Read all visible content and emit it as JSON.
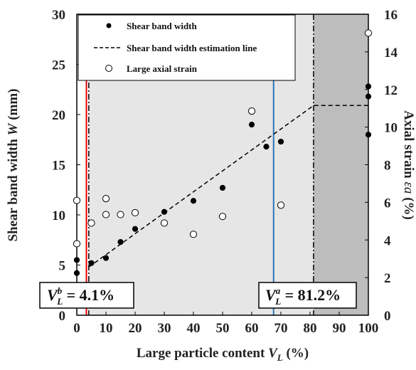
{
  "chart_data": {
    "type": "scatter",
    "xlabel": "Large particle content",
    "xlabel_var": "V",
    "xlabel_sub": "L",
    "xlabel_unit": "(%)",
    "ylabel": "Shear band width",
    "ylabel_var": "W",
    "ylabel_unit": "(mm)",
    "y2label": "Axial strain",
    "y2label_var": "εa",
    "y2label_unit": "(%)",
    "xlim": [
      0,
      100
    ],
    "ylim": [
      0,
      30
    ],
    "y2lim": [
      0,
      16
    ],
    "x_ticks": [
      "0",
      "10",
      "20",
      "30",
      "40",
      "50",
      "60",
      "70",
      "80",
      "90",
      "100"
    ],
    "y_ticks": [
      "0",
      "5",
      "10",
      "15",
      "20",
      "25",
      "30"
    ],
    "y2_ticks": [
      "0",
      "2",
      "4",
      "6",
      "8",
      "10",
      "12",
      "14",
      "16"
    ],
    "legend": {
      "position": "top-left",
      "entries": [
        "Shear band width",
        "Shear band width estimation line",
        "Large axial strain"
      ]
    },
    "series": [
      {
        "name": "Shear band width",
        "axis": "left",
        "marker": "filled",
        "points": [
          [
            0,
            4.2
          ],
          [
            0,
            5.5
          ],
          [
            5,
            5.2
          ],
          [
            10,
            5.7
          ],
          [
            15,
            7.3
          ],
          [
            20,
            8.6
          ],
          [
            30,
            10.3
          ],
          [
            40,
            11.4
          ],
          [
            50,
            12.7
          ],
          [
            60,
            19.0
          ],
          [
            65,
            16.8
          ],
          [
            70,
            17.3
          ],
          [
            100,
            22.8
          ],
          [
            100,
            21.8
          ],
          [
            100,
            18.0
          ]
        ]
      },
      {
        "name": "Shear band width estimation line",
        "axis": "left",
        "style": "dashed",
        "points": [
          [
            4.1,
            4.8
          ],
          [
            81.2,
            20.9
          ],
          [
            100,
            20.9
          ]
        ]
      },
      {
        "name": "Large axial strain",
        "axis": "right",
        "marker": "open",
        "points": [
          [
            0,
            6.1
          ],
          [
            0,
            3.8
          ],
          [
            5,
            4.9
          ],
          [
            10,
            6.2
          ],
          [
            10,
            5.35
          ],
          [
            15,
            5.35
          ],
          [
            20,
            5.45
          ],
          [
            30,
            4.9
          ],
          [
            40,
            4.3
          ],
          [
            50,
            5.25
          ],
          [
            60,
            10.85
          ],
          [
            70,
            5.85
          ],
          [
            100,
            15.0
          ]
        ]
      }
    ],
    "regions": [
      {
        "name": "middle",
        "from": 4.1,
        "to": 81.2,
        "color": "#e6e6e6"
      },
      {
        "name": "right",
        "from": 81.2,
        "to": 100,
        "color": "#bdbdbd"
      }
    ],
    "vlines": [
      {
        "x": 3.3,
        "color": "#e60000",
        "style": "solid"
      },
      {
        "x": 4.1,
        "color": "#000000",
        "style": "dashdot"
      },
      {
        "x": 67.5,
        "color": "#2e75b6",
        "style": "solid"
      },
      {
        "x": 81.2,
        "color": "#000000",
        "style": "dashdot"
      }
    ],
    "annotations": {
      "left_box": {
        "var": "V",
        "sup": "b",
        "sub": "L",
        "value": " = 4.1%"
      },
      "right_box": {
        "var": "V",
        "sup": "a",
        "sub": "L",
        "value": " = 81.2%"
      }
    }
  }
}
